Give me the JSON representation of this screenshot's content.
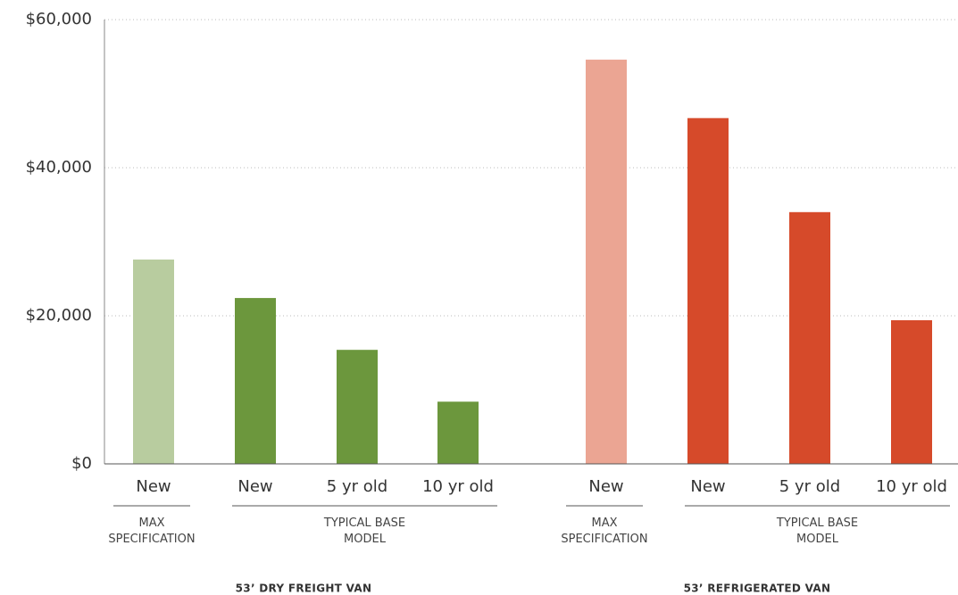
{
  "chart_data": {
    "type": "bar",
    "categories": [
      "New",
      "New",
      "5 yr old",
      "10 yr old",
      "New",
      "New",
      "5 yr old",
      "10 yr old"
    ],
    "values": [
      27600,
      22400,
      15400,
      8400,
      54600,
      46700,
      34000,
      19400
    ],
    "colors": [
      "#b8cc9f",
      "#6c973d",
      "#6c973d",
      "#6c973d",
      "#eba593",
      "#d64a2a",
      "#d64a2a",
      "#d64a2a"
    ],
    "subgroup_labels": [
      "MAX SPECIFICATION",
      "TYPICAL BASE MODEL",
      "MAX SPECIFICATION",
      "TYPICAL BASE MODEL"
    ],
    "group_labels": [
      "53’ DRY FREIGHT VAN",
      "53’ REFRIGERATED VAN"
    ],
    "ylim": [
      0,
      60000
    ],
    "yticks": [
      {
        "value": 0,
        "label": "$0"
      },
      {
        "value": 20000,
        "label": "$20,000"
      },
      {
        "value": 40000,
        "label": "$40,000"
      },
      {
        "value": 60000,
        "label": "$60,000"
      }
    ],
    "grid": true
  }
}
